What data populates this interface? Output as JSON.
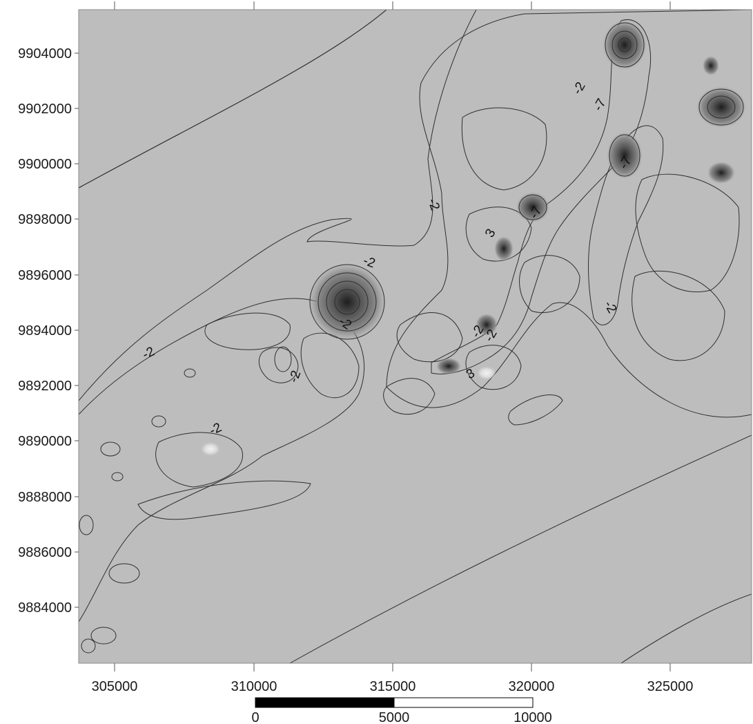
{
  "map": {
    "x_ticks": [
      "305000",
      "310000",
      "315000",
      "320000",
      "325000"
    ],
    "y_ticks": [
      "9904000",
      "9902000",
      "9900000",
      "9898000",
      "9896000",
      "9894000",
      "9892000",
      "9890000",
      "9888000",
      "9886000",
      "9884000"
    ],
    "contour_labels": [
      "-2",
      "-2",
      "-2",
      "-2",
      "-2",
      "-2",
      "-2",
      "-2",
      "-2",
      "-2",
      "-7",
      "-7",
      "-7",
      "3",
      "3"
    ],
    "colors": {
      "deep": "#8f8f8f",
      "mid": "#a8a8a8",
      "plain": "#bdbdbd",
      "light": "#d4d4d4",
      "lighter": "#e6e6e6",
      "dark": "#6e6e6e",
      "darkest": "#2a2a2a"
    }
  },
  "scale_bar": {
    "labels": [
      "0",
      "5000",
      "10000"
    ]
  }
}
